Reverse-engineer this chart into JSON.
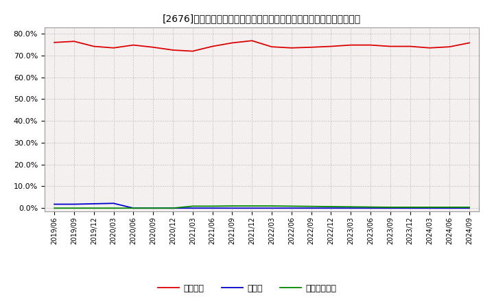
{
  "title": "[2676]　自己資本、のれん、繰延税金資産の総資産に対する比率の推移",
  "background_color": "#ffffff",
  "plot_bg_color": "#f5f0f0",
  "grid_color": "#aaaaaa",
  "x_labels": [
    "2019/06",
    "2019/09",
    "2019/12",
    "2020/03",
    "2020/06",
    "2020/09",
    "2020/12",
    "2021/03",
    "2021/06",
    "2021/09",
    "2021/12",
    "2022/03",
    "2022/06",
    "2022/09",
    "2022/12",
    "2023/03",
    "2023/06",
    "2023/09",
    "2023/12",
    "2024/03",
    "2024/06",
    "2024/09"
  ],
  "equity_ratio": [
    76.0,
    76.5,
    74.2,
    73.5,
    74.8,
    73.8,
    72.5,
    72.0,
    74.2,
    75.8,
    76.8,
    74.0,
    73.5,
    73.8,
    74.2,
    74.8,
    74.8,
    74.2,
    74.2,
    73.5,
    74.0,
    75.8
  ],
  "goodwill_ratio": [
    1.8,
    1.8,
    2.0,
    2.2,
    0.0,
    0.0,
    0.0,
    0.0,
    0.0,
    0.0,
    0.0,
    0.0,
    0.0,
    0.0,
    0.0,
    0.0,
    0.0,
    0.0,
    0.0,
    0.0,
    0.0,
    0.0
  ],
  "deferred_tax_ratio": [
    0.0,
    0.0,
    0.0,
    0.0,
    0.0,
    0.0,
    0.0,
    0.9,
    0.9,
    1.0,
    1.0,
    1.0,
    0.9,
    0.8,
    0.7,
    0.6,
    0.5,
    0.4,
    0.4,
    0.4,
    0.4,
    0.4
  ],
  "equity_color": "#dd0000",
  "goodwill_color": "#0000cc",
  "deferred_tax_color": "#008800",
  "legend_equity": "自己資本",
  "legend_goodwill": "のれん",
  "legend_deferred": "繰延税金資産",
  "ylim_min": -1.5,
  "ylim_max": 83.0,
  "yticks": [
    0.0,
    10.0,
    20.0,
    30.0,
    40.0,
    50.0,
    60.0,
    70.0,
    80.0
  ]
}
